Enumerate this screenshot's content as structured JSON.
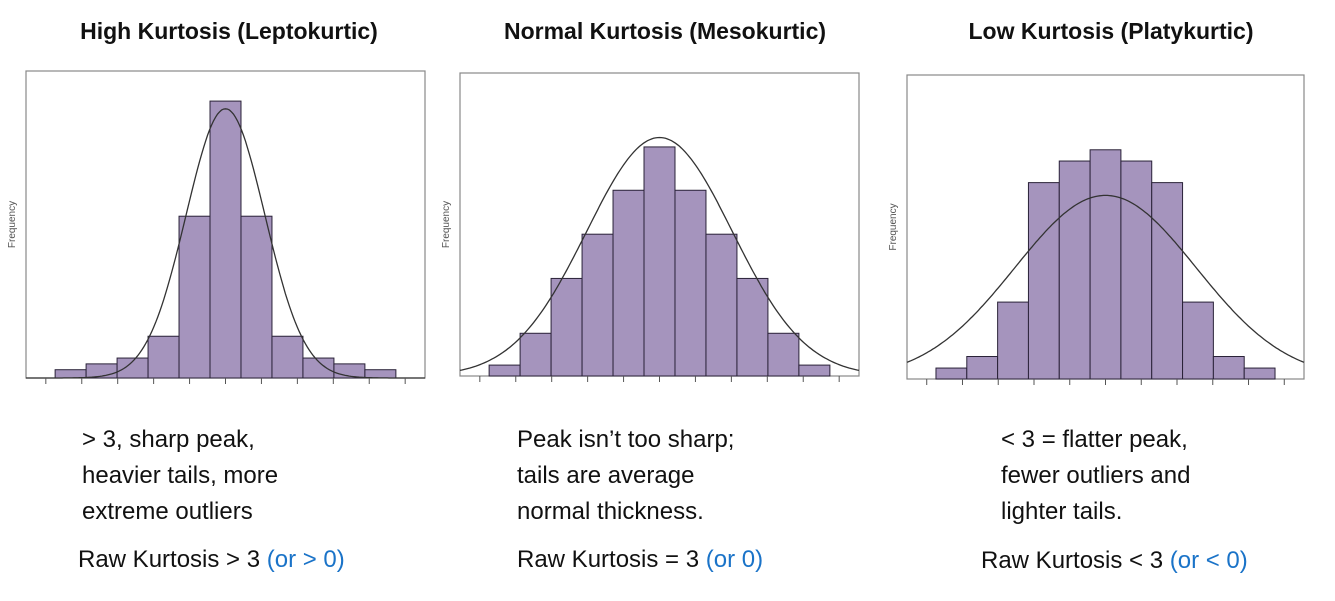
{
  "colors": {
    "bar_fill": "#a594bd",
    "bar_stroke": "#2a2238",
    "curve": "#333333",
    "frame": "#888888",
    "note_blue": "#1a73c8"
  },
  "panels": [
    {
      "title": "High Kurtosis (Leptokurtic)",
      "caption_lines": [
        "> 3, sharp peak,",
        "heavier tails, more",
        "extreme outliers"
      ],
      "raw_text": "Raw Kurtosis > 3",
      "raw_note": "(or > 0)"
    },
    {
      "title": "Normal Kurtosis (Mesokurtic)",
      "caption_lines": [
        "Peak isn’t too sharp;",
        "tails are average",
        "normal thickness."
      ],
      "raw_text": "Raw Kurtosis = 3",
      "raw_note": "(or 0)"
    },
    {
      "title": "Low Kurtosis (Platykurtic)",
      "caption_lines": [
        "< 3 = flatter peak,",
        "fewer outliers and",
        "lighter tails."
      ],
      "raw_text": "Raw Kurtosis < 3",
      "raw_note": "(or < 0)"
    }
  ],
  "chart_data": [
    {
      "type": "bar",
      "title": "High Kurtosis (Leptokurtic)",
      "ylabel": "Frequency",
      "xlabel": "",
      "bins": [
        -5,
        -4,
        -3,
        -2,
        -1,
        0,
        1,
        2,
        3,
        4,
        5
      ],
      "values": [
        2.7,
        4.6,
        6.5,
        13.6,
        52.7,
        90.2,
        52.7,
        13.6,
        6.5,
        4.6,
        2.7
      ],
      "normal_curve": {
        "mean": 0,
        "sigma": 1.27,
        "peak": 87.7
      },
      "ylim": [
        0,
        100
      ],
      "grid": false
    },
    {
      "type": "bar",
      "title": "Normal Kurtosis (Mesokurtic)",
      "ylabel": "Frequency",
      "xlabel": "",
      "bins": [
        -5,
        -4,
        -3,
        -2,
        -1,
        0,
        1,
        2,
        3,
        4,
        5
      ],
      "values": [
        3.6,
        14.1,
        32.2,
        46.8,
        61.3,
        75.6,
        61.3,
        46.8,
        32.2,
        14.1,
        3.6
      ],
      "normal_curve": {
        "mean": 0,
        "sigma": 2.35,
        "peak": 78.7
      },
      "ylim": [
        0,
        100
      ],
      "grid": false
    },
    {
      "type": "bar",
      "title": "Low Kurtosis (Platykurtic)",
      "ylabel": "Frequency",
      "xlabel": "",
      "bins": [
        -5,
        -4,
        -3,
        -2,
        -1,
        0,
        1,
        2,
        3,
        4,
        5
      ],
      "values": [
        3.6,
        7.4,
        25.3,
        64.6,
        71.7,
        75.4,
        71.7,
        64.6,
        25.3,
        7.4,
        3.6
      ],
      "normal_curve": {
        "mean": 0,
        "sigma": 2.94,
        "peak": 60.4
      },
      "ylim": [
        0,
        100
      ],
      "grid": false
    }
  ]
}
